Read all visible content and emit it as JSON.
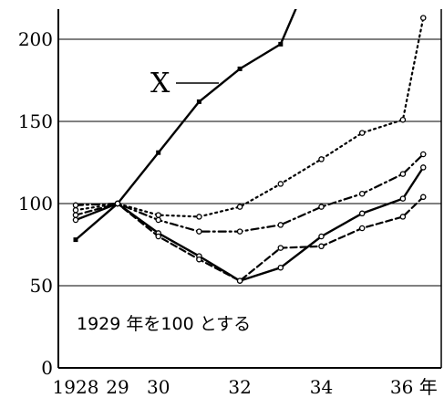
{
  "chart_data": {
    "type": "line",
    "title": "",
    "xlabel": "",
    "ylabel": "",
    "xlim": [
      1928,
      1936.6
    ],
    "ylim": [
      0,
      220
    ],
    "grid": {
      "horizontal": true,
      "vertical": false
    },
    "x_ticks": [
      {
        "value": 1928,
        "label": "1928"
      },
      {
        "value": 1929,
        "label": "29"
      },
      {
        "value": 1930,
        "label": "30"
      },
      {
        "value": 1932,
        "label": "32"
      },
      {
        "value": 1934,
        "label": "34"
      },
      {
        "value": 1936,
        "label": "36 年"
      }
    ],
    "y_ticks": [
      {
        "value": 0,
        "label": "0"
      },
      {
        "value": 50,
        "label": "50"
      },
      {
        "value": 100,
        "label": "100"
      },
      {
        "value": 150,
        "label": "150"
      },
      {
        "value": 200,
        "label": "200"
      }
    ],
    "annotation": "1929 年を100 とする",
    "series_label": "X",
    "series": [
      {
        "style": "solid",
        "labeled": true,
        "x": [
          1928,
          1929,
          1930,
          1931,
          1932,
          1933,
          1933.4
        ],
        "y": [
          78,
          100,
          131,
          162,
          182,
          197,
          220
        ]
      },
      {
        "style": "dotted",
        "labeled": false,
        "x": [
          1928,
          1929,
          1930,
          1931,
          1932,
          1933,
          1934,
          1935,
          1936,
          1936.5
        ],
        "y": [
          96,
          100,
          93,
          92,
          98,
          112,
          127,
          143,
          151,
          213
        ]
      },
      {
        "style": "dash-dot",
        "labeled": false,
        "x": [
          1928,
          1929,
          1930,
          1931,
          1932,
          1933,
          1934,
          1935,
          1936,
          1936.5
        ],
        "y": [
          99,
          100,
          90,
          83,
          83,
          87,
          98,
          106,
          118,
          130
        ]
      },
      {
        "style": "solid",
        "labeled": false,
        "x": [
          1928,
          1929,
          1930,
          1931,
          1932,
          1933,
          1934,
          1935,
          1936,
          1936.5
        ],
        "y": [
          90,
          100,
          82,
          68,
          53,
          61,
          80,
          94,
          103,
          122
        ]
      },
      {
        "style": "dash",
        "labeled": false,
        "x": [
          1928,
          1929,
          1930,
          1931,
          1932,
          1933,
          1934,
          1935,
          1936,
          1936.5
        ],
        "y": [
          93,
          100,
          80,
          66,
          53,
          73,
          74,
          85,
          92,
          104
        ]
      }
    ]
  }
}
